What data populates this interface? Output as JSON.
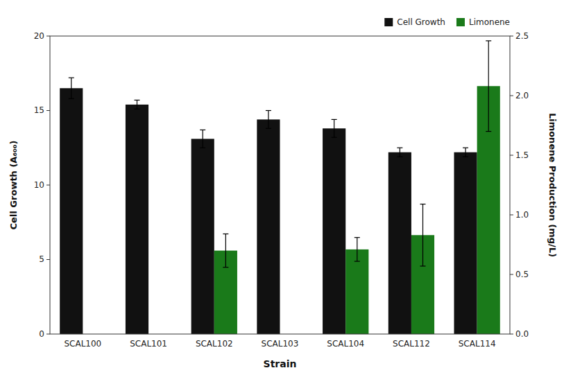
{
  "chart_data": {
    "type": "bar",
    "categories": [
      "SCAL100",
      "SCAL101",
      "SCAL102",
      "SCAL103",
      "SCAL104",
      "SCAL112",
      "SCAL114"
    ],
    "series": [
      {
        "name": "Cell Growth",
        "color": "#111111",
        "values": [
          16.5,
          15.4,
          13.1,
          14.4,
          13.8,
          12.2,
          12.2
        ],
        "errors": [
          0.7,
          0.3,
          0.6,
          0.6,
          0.6,
          0.3,
          0.3
        ]
      },
      {
        "name": "Limonene",
        "color": "#1a7a1a",
        "axis": "y2",
        "values": [
          null,
          null,
          0.7,
          null,
          0.71,
          0.83,
          2.08
        ],
        "errors": [
          null,
          null,
          0.14,
          null,
          0.1,
          0.26,
          0.38
        ]
      }
    ],
    "xlabel": "Strain",
    "ylabel": "Cell Growth (A₆₀₀)",
    "y2label": "Limonene Production (mg/L)",
    "ylim": [
      0,
      20
    ],
    "yticks": [
      0,
      5,
      10,
      15,
      20
    ],
    "y2lim": [
      0,
      2.5
    ],
    "y2ticks": [
      {
        "value": 0.0,
        "label": "0.0"
      },
      0.5,
      {
        "value": 1.0,
        "label": "1.0"
      },
      1.5,
      {
        "value": 2.0,
        "label": "2.0"
      },
      2.5
    ],
    "legend": "upper right",
    "grid": false
  }
}
